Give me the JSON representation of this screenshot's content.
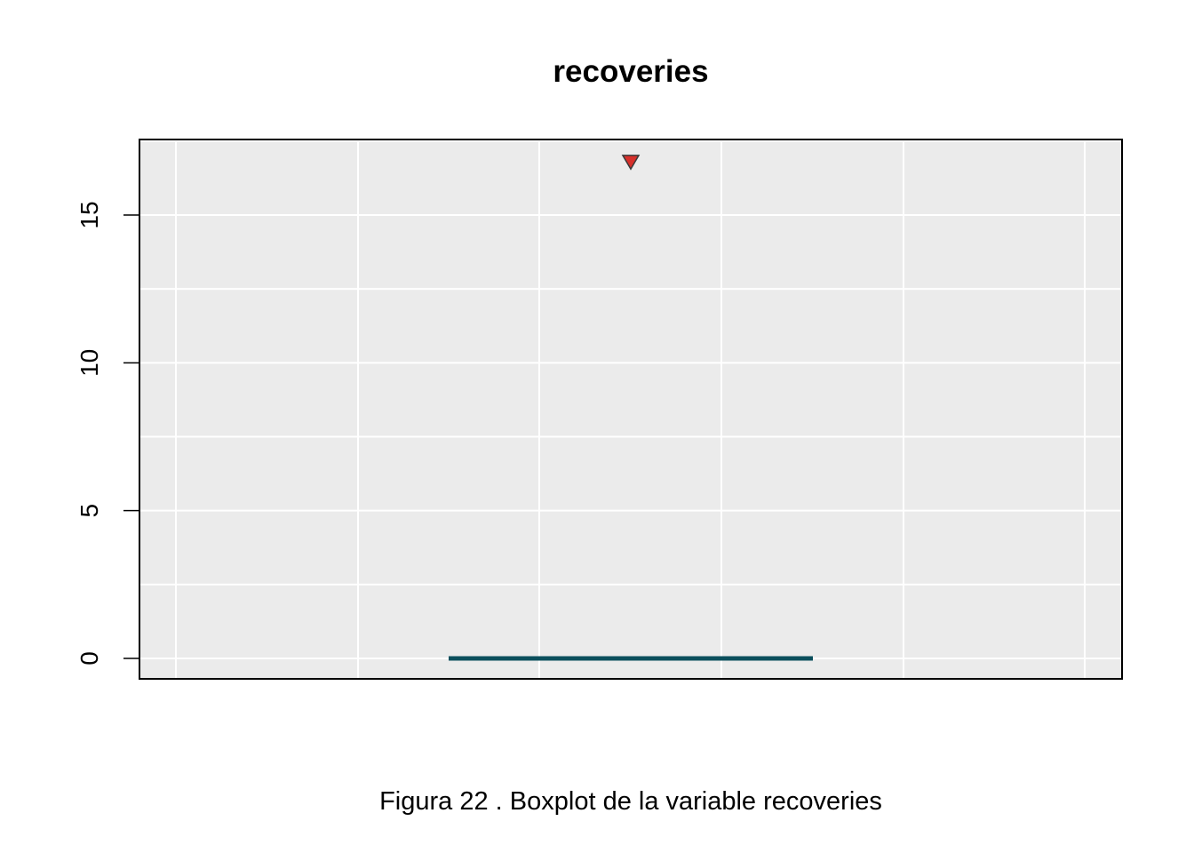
{
  "chart_data": {
    "type": "boxplot",
    "title": "recoveries",
    "caption": "Figura  22 . Boxplot de la variable  recoveries",
    "xlabel": "",
    "ylabel": "",
    "ylim": [
      -0.7,
      17.5
    ],
    "yticks": [
      0,
      5,
      10,
      15
    ],
    "ytick_labels": [
      "0",
      "5",
      "10",
      "15"
    ],
    "grid": true,
    "box": {
      "min": 0,
      "q1": 0,
      "median": 0,
      "q3": 0,
      "max": 0
    },
    "outliers": [
      16.8
    ],
    "colors": {
      "panel_background": "#EBEBEB",
      "grid": "#FFFFFF",
      "box_line": "#0B4F5C",
      "outlier_fill": "#D7302B",
      "outlier_stroke": "#3A3A3A"
    }
  }
}
